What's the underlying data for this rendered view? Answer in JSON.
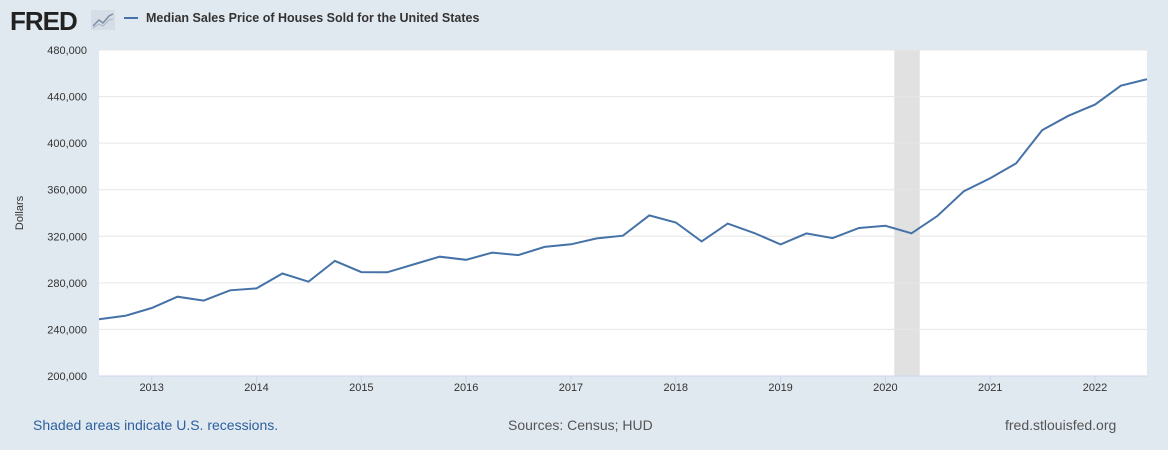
{
  "header": {
    "logo": "FRED",
    "logo_icon": "line-chart-icon"
  },
  "footer": {
    "recessions_note": "Shaded areas indicate U.S. recessions.",
    "sources": "Sources: Census; HUD",
    "site": "fred.stlouisfed.org"
  },
  "chart_data": {
    "type": "line",
    "title": "",
    "ylabel": "Dollars",
    "xlabel": "",
    "ylim": [
      200000,
      480000
    ],
    "xlim": [
      "2012-07-01",
      "2022-07-01"
    ],
    "yticks": [
      200000,
      240000,
      280000,
      320000,
      360000,
      400000,
      440000,
      480000
    ],
    "ytick_labels": [
      "200,000",
      "240,000",
      "280,000",
      "320,000",
      "360,000",
      "400,000",
      "440,000",
      "480,000"
    ],
    "xticks": [
      "2013",
      "2014",
      "2015",
      "2016",
      "2017",
      "2018",
      "2019",
      "2020",
      "2021",
      "2022"
    ],
    "grid": "horizontal",
    "legend_position": "top-left",
    "recessions": [
      [
        "2020-02-01",
        "2020-04-30"
      ]
    ],
    "colors": {
      "line": "#4572a7",
      "recession": "#e1e1e1",
      "background": "#e1e9f0"
    },
    "series": [
      {
        "name": "Median Sales Price of Houses Sold for the United States",
        "x": [
          "2012-07-01",
          "2012-10-01",
          "2013-01-01",
          "2013-04-01",
          "2013-07-01",
          "2013-10-01",
          "2014-01-01",
          "2014-04-01",
          "2014-07-01",
          "2014-10-01",
          "2015-01-01",
          "2015-04-01",
          "2015-07-01",
          "2015-10-01",
          "2016-01-01",
          "2016-04-01",
          "2016-07-01",
          "2016-10-01",
          "2017-01-01",
          "2017-04-01",
          "2017-07-01",
          "2017-10-01",
          "2018-01-01",
          "2018-04-01",
          "2018-07-01",
          "2018-10-01",
          "2019-01-01",
          "2019-04-01",
          "2019-07-01",
          "2019-10-01",
          "2020-01-01",
          "2020-04-01",
          "2020-07-01",
          "2020-10-01",
          "2021-01-01",
          "2021-04-01",
          "2021-07-01",
          "2021-10-01",
          "2022-01-01",
          "2022-04-01",
          "2022-07-01"
        ],
        "values": [
          248700,
          251700,
          258400,
          268100,
          264800,
          273600,
          275200,
          288000,
          281000,
          298900,
          289200,
          289100,
          295800,
          302500,
          299800,
          306000,
          303800,
          310900,
          313100,
          318200,
          320500,
          337900,
          331800,
          315600,
          330900,
          322800,
          313000,
          322500,
          318400,
          327100,
          329000,
          322600,
          337500,
          358700,
          369800,
          382600,
          411200,
          423600,
          433100,
          449300,
          454900
        ]
      }
    ]
  }
}
